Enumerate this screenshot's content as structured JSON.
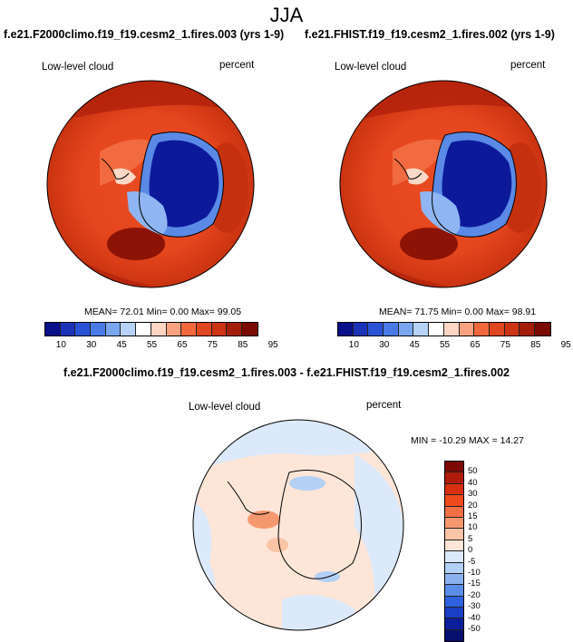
{
  "figure": {
    "season": "JJA"
  },
  "panel_left": {
    "case": "f.e21.F2000climo.f19_f19.cesm2_1.fires.003 (yrs 1-9)",
    "variable": "Low-level cloud",
    "units": "percent",
    "stats": "MEAN=  72.01  Min=   0.00  Max=  99.05"
  },
  "panel_right": {
    "case": "f.e21.FHIST.f19_f19.cesm2_1.fires.002 (yrs 1-9)",
    "variable": "Low-level cloud",
    "units": "percent",
    "stats": "MEAN=  71.75  Min=   0.00  Max=  98.91"
  },
  "panel_diff": {
    "case": "f.e21.F2000climo.f19_f19.cesm2_1.fires.003 - f.e21.FHIST.f19_f19.cesm2_1.fires.002",
    "variable": "Low-level cloud",
    "units": "percent",
    "stats": "MIN = -10.29 MAX =  14.27"
  },
  "colorbar_main": {
    "labels": [
      "10",
      "30",
      "45",
      "55",
      "65",
      "75",
      "85",
      "95"
    ],
    "colors": [
      "#0a0f8a",
      "#1a33b8",
      "#2a52d6",
      "#4a7ae6",
      "#7aa6f0",
      "#b6d3f7",
      "#ffffff",
      "#fdd6c4",
      "#f9a27f",
      "#f2683d",
      "#e0461f",
      "#cc3414",
      "#a31d0a",
      "#7a0a03"
    ]
  },
  "colorbar_diff": {
    "labels": [
      "50",
      "40",
      "30",
      "20",
      "15",
      "10",
      "5",
      "0",
      "-5",
      "-10",
      "-15",
      "-20",
      "-30",
      "-40",
      "-50"
    ],
    "colors": [
      "#7a0a03",
      "#b01c0a",
      "#d8300f",
      "#ee4b1e",
      "#f27046",
      "#f6986f",
      "#fac4a6",
      "#fde6d8",
      "#dce9fa",
      "#b3d0f5",
      "#8ab2ee",
      "#5b8ee8",
      "#2f62de",
      "#1a3fc4",
      "#0c1f9a",
      "#07106e"
    ]
  }
}
